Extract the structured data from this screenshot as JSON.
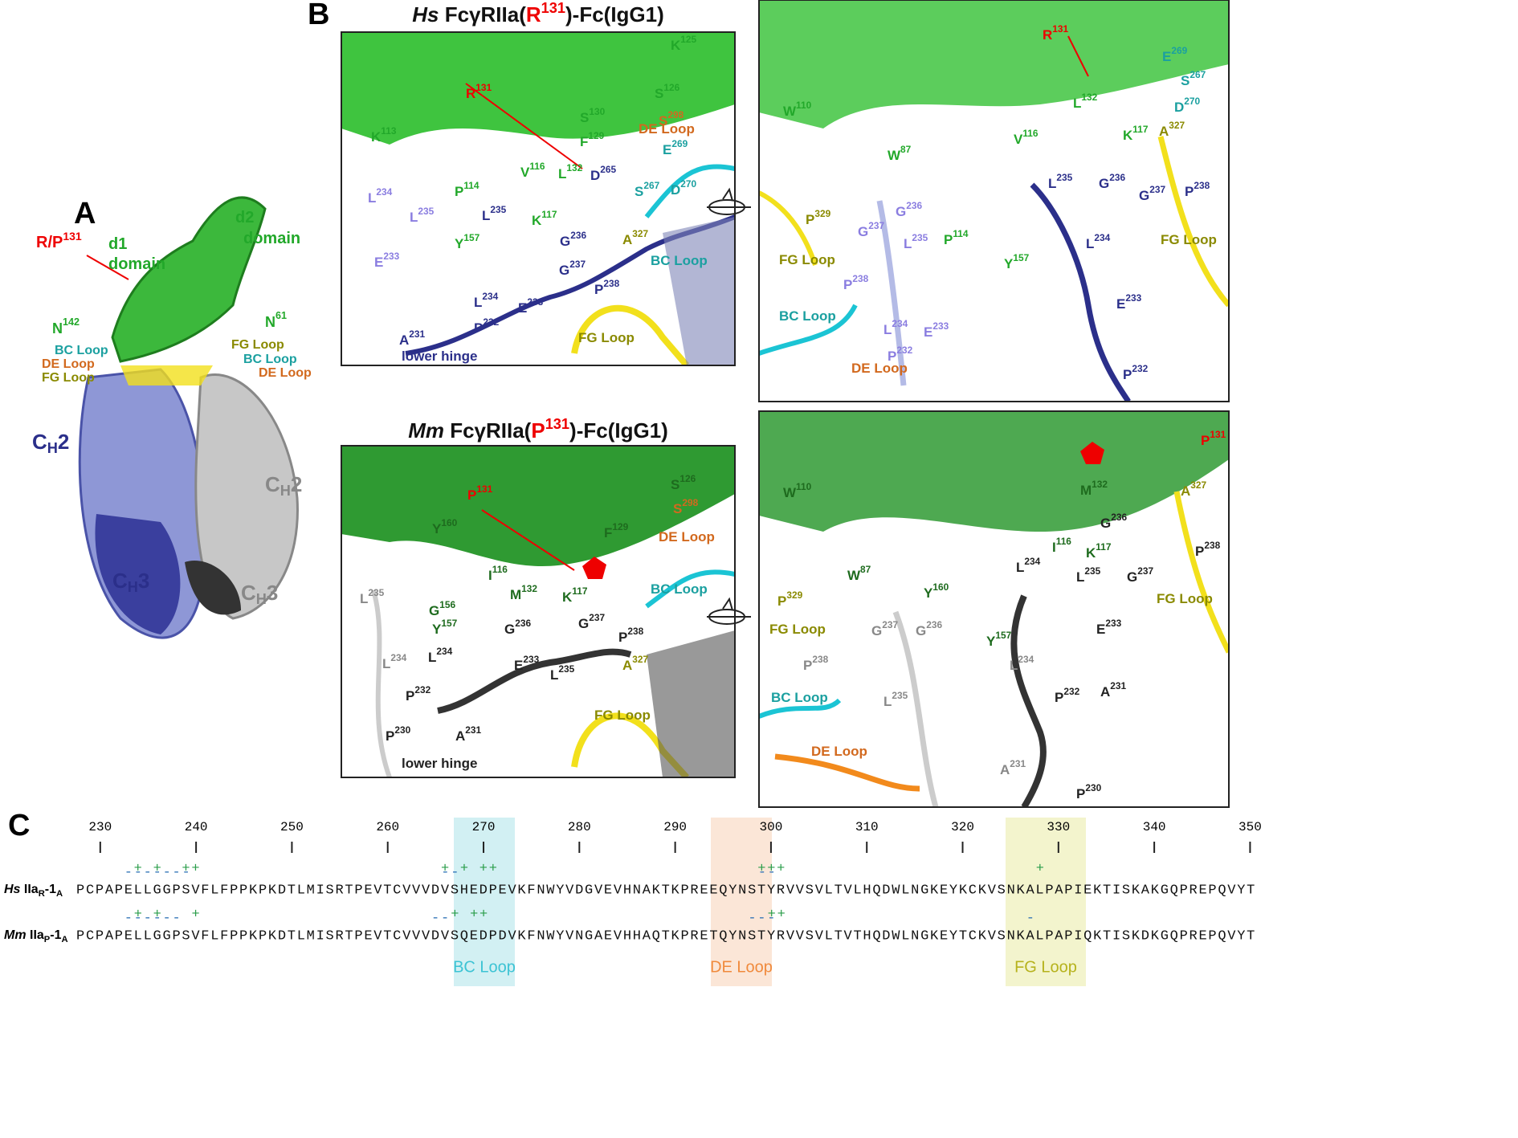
{
  "panel_a": {
    "letter": "A",
    "labels": [
      {
        "t": "R/P",
        "s": "131"
      },
      {
        "t": "d1"
      },
      {
        "t": "domain"
      },
      {
        "t": "d2"
      },
      {
        "t": "domain"
      },
      {
        "t": "N",
        "s": "142"
      },
      {
        "t": "N",
        "s": "61"
      },
      {
        "t": "BC Loop"
      },
      {
        "t": "DE Loop"
      },
      {
        "t": "FG Loop"
      },
      {
        "t": "FG Loop"
      },
      {
        "t": "BC Loop"
      },
      {
        "t": "DE Loop"
      },
      {
        "t": "C",
        "sub": "H",
        "post": "2"
      },
      {
        "t": "C",
        "sub": "H",
        "post": "2"
      },
      {
        "t": "C",
        "sub": "H",
        "post": "3"
      },
      {
        "t": "C",
        "sub": "H",
        "post": "3"
      }
    ]
  },
  "panel_b": {
    "letter": "B",
    "titles": [
      {
        "species": "Hs",
        "pre": " FcγRIIa(",
        "res": "R",
        "num": "131",
        "post": ")-Fc(IgG1)"
      },
      {
        "species": "Mm",
        "pre": " FcγRIIa(",
        "res": "P",
        "num": "131",
        "post": ")-Fc(IgG1)"
      }
    ],
    "panels": [
      {
        "labels": [
          {
            "t": "K",
            "s": "125"
          },
          {
            "t": "S",
            "s": "126"
          },
          {
            "t": "S",
            "s": "298"
          },
          {
            "t": "R",
            "s": "131"
          },
          {
            "t": "S",
            "s": "130"
          },
          {
            "t": "DE Loop"
          },
          {
            "t": "K",
            "s": "113"
          },
          {
            "t": "F",
            "s": "129"
          },
          {
            "t": "E",
            "s": "269"
          },
          {
            "t": "V",
            "s": "116"
          },
          {
            "t": "L",
            "s": "132"
          },
          {
            "t": "D",
            "s": "265"
          },
          {
            "t": "S",
            "s": "267"
          },
          {
            "t": "D",
            "s": "270"
          },
          {
            "t": "L",
            "s": "234"
          },
          {
            "t": "L",
            "s": "235"
          },
          {
            "t": "P",
            "s": "114"
          },
          {
            "t": "L",
            "s": "235"
          },
          {
            "t": "K",
            "s": "117"
          },
          {
            "t": "G",
            "s": "236"
          },
          {
            "t": "A",
            "s": "327"
          },
          {
            "t": "Y",
            "s": "157"
          },
          {
            "t": "E",
            "s": "233"
          },
          {
            "t": "G",
            "s": "237"
          },
          {
            "t": "BC Loop"
          },
          {
            "t": "P",
            "s": "238"
          },
          {
            "t": "L",
            "s": "234"
          },
          {
            "t": "E",
            "s": "233"
          },
          {
            "t": "FG Loop"
          },
          {
            "t": "A",
            "s": "231"
          },
          {
            "t": "P",
            "s": "232"
          },
          {
            "t": "lower hinge"
          }
        ]
      },
      {
        "labels": [
          {
            "t": "R",
            "s": "131"
          },
          {
            "t": "E",
            "s": "269"
          },
          {
            "t": "S",
            "s": "267"
          },
          {
            "t": "L",
            "s": "132"
          },
          {
            "t": "D",
            "s": "270"
          },
          {
            "t": "W",
            "s": "110"
          },
          {
            "t": "A",
            "s": "327"
          },
          {
            "t": "V",
            "s": "116"
          },
          {
            "t": "K",
            "s": "117"
          },
          {
            "t": "W",
            "s": "87"
          },
          {
            "t": "P",
            "s": "329"
          },
          {
            "t": "L",
            "s": "235"
          },
          {
            "t": "G",
            "s": "236"
          },
          {
            "t": "G",
            "s": "237"
          },
          {
            "t": "P",
            "s": "238"
          },
          {
            "t": "G",
            "s": "236"
          },
          {
            "t": "P",
            "s": "114"
          },
          {
            "t": "G",
            "s": "237"
          },
          {
            "t": "L",
            "s": "235"
          },
          {
            "t": "L",
            "s": "234"
          },
          {
            "t": "FG Loop"
          },
          {
            "t": "FG Loop"
          },
          {
            "t": "P",
            "s": "238"
          },
          {
            "t": "Y",
            "s": "157"
          },
          {
            "t": "BC Loop"
          },
          {
            "t": "E",
            "s": "233"
          },
          {
            "t": "L",
            "s": "234"
          },
          {
            "t": "E",
            "s": "233"
          },
          {
            "t": "P",
            "s": "232"
          },
          {
            "t": "DE Loop"
          },
          {
            "t": "P",
            "s": "232"
          }
        ]
      },
      {
        "labels": [
          {
            "t": "S",
            "s": "126"
          },
          {
            "t": "P",
            "s": "131"
          },
          {
            "t": "S",
            "s": "298"
          },
          {
            "t": "Y",
            "s": "160"
          },
          {
            "t": "F",
            "s": "129"
          },
          {
            "t": "DE Loop"
          },
          {
            "t": "I",
            "s": "116"
          },
          {
            "t": "BC Loop"
          },
          {
            "t": "L",
            "s": "235"
          },
          {
            "t": "G",
            "s": "156"
          },
          {
            "t": "K",
            "s": "117"
          },
          {
            "t": "M",
            "s": "132"
          },
          {
            "t": "Y",
            "s": "157"
          },
          {
            "t": "G",
            "s": "236"
          },
          {
            "t": "G",
            "s": "237"
          },
          {
            "t": "P",
            "s": "238"
          },
          {
            "t": "A",
            "s": "327"
          },
          {
            "t": "L",
            "s": "234"
          },
          {
            "t": "L",
            "s": "234"
          },
          {
            "t": "E",
            "s": "233"
          },
          {
            "t": "L",
            "s": "235"
          },
          {
            "t": "P",
            "s": "232"
          },
          {
            "t": "FG Loop"
          },
          {
            "t": "P",
            "s": "230"
          },
          {
            "t": "A",
            "s": "231"
          },
          {
            "t": "lower hinge"
          }
        ]
      },
      {
        "labels": [
          {
            "t": "P",
            "s": "131"
          },
          {
            "t": "W",
            "s": "110"
          },
          {
            "t": "M",
            "s": "132"
          },
          {
            "t": "A",
            "s": "327"
          },
          {
            "t": "G",
            "s": "236"
          },
          {
            "t": "I",
            "s": "116"
          },
          {
            "t": "K",
            "s": "117"
          },
          {
            "t": "P",
            "s": "238"
          },
          {
            "t": "L",
            "s": "235"
          },
          {
            "t": "G",
            "s": "237"
          },
          {
            "t": "W",
            "s": "87"
          },
          {
            "t": "Y",
            "s": "160"
          },
          {
            "t": "L",
            "s": "234"
          },
          {
            "t": "FG Loop"
          },
          {
            "t": "P",
            "s": "329"
          },
          {
            "t": "E",
            "s": "233"
          },
          {
            "t": "FG Loop"
          },
          {
            "t": "G",
            "s": "237"
          },
          {
            "t": "G",
            "s": "236"
          },
          {
            "t": "Y",
            "s": "157"
          },
          {
            "t": "P",
            "s": "238"
          },
          {
            "t": "L",
            "s": "234"
          },
          {
            "t": "P",
            "s": "232"
          },
          {
            "t": "A",
            "s": "231"
          },
          {
            "t": "BC Loop"
          },
          {
            "t": "L",
            "s": "235"
          },
          {
            "t": "DE Loop"
          },
          {
            "t": "A",
            "s": "231"
          },
          {
            "t": "P",
            "s": "230"
          }
        ]
      }
    ]
  },
  "panel_c": {
    "letter": "C",
    "ruler": [
      230,
      240,
      250,
      260,
      270,
      280,
      290,
      300,
      310,
      320,
      330,
      340,
      350
    ],
    "rows": [
      {
        "species": "Hs",
        "name": " IIa",
        "sub": "R",
        "mid": "-1",
        "sub2": "A",
        "plus": "      + +  ++                         + + ++                           +++                          +",
        "minus": "     -------                          --                               --",
        "sequence": "PCPAPELLGGPSVFLFPPKPKDTLMISRTPEVTCVVVDVSHEDPEVKFNWYVDGVEVHNAKTKPREEQYNSTYRVVSVLTVLHQDWLNGKEYKCKVSNKALPAPIEKTISKAKGQPREPQVYT"
      },
      {
        "species": "Mm",
        "name": " IIa",
        "sub": "P",
        "mid": "-1",
        "sub2": "A",
        "plus": "      + +   +                          + ++                             ++",
        "minus": "     ------                          --                               ---                          -",
        "sequence": "PCPAPELLGGPSVFLFPPKPKDTLMISRTPEVTCVVVDVSQEDPDVKFNWYVNGAEVHHAQTKPRETQYNSTYRVVSVLTVTHQDWLNGKEYTCKVSNKALPAPIQKTISKDKGQPREPQVYT"
      }
    ],
    "loops": [
      "BC Loop",
      "DE Loop",
      "FG Loop"
    ]
  }
}
